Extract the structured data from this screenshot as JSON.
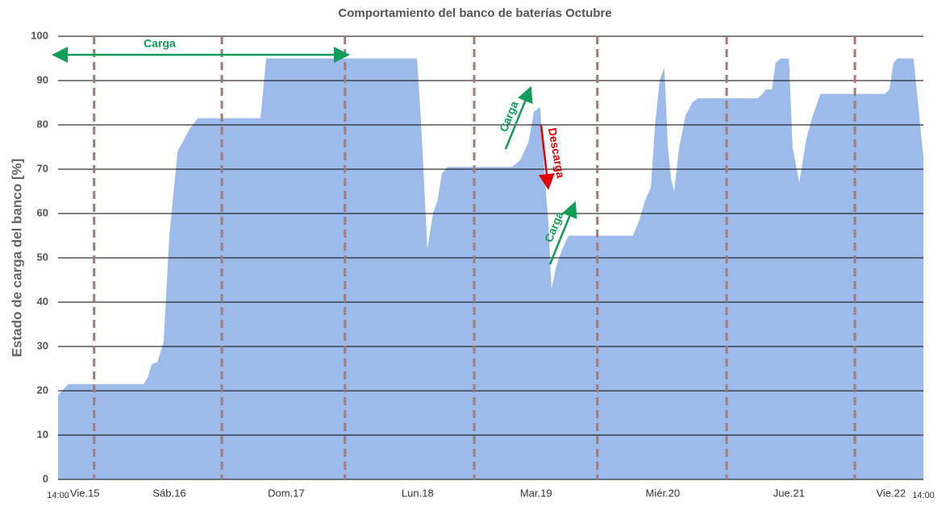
{
  "chart_data": {
    "type": "area",
    "title": "Comportamiento del banco de baterías Octubre",
    "y_label": "Estado de carga del banco [%]",
    "annotations": [
      "Carga",
      "Carga",
      "Descarga",
      "Carga"
    ],
    "color": "#9dbbea",
    "grid": true,
    "xlim": [
      0,
      168
    ],
    "xticks": [
      {
        "value": 0,
        "label": "14:00"
      },
      {
        "value": 5.2,
        "label": "Vie.15"
      },
      {
        "value": 21.6,
        "label": "Sáb.16"
      },
      {
        "value": 44.3,
        "label": "Dom.17"
      },
      {
        "value": 69.8,
        "label": "Lun.18"
      },
      {
        "value": 92.8,
        "label": "Mar.19"
      },
      {
        "value": 117.4,
        "label": "Miér.20"
      },
      {
        "value": 141.9,
        "label": "Jue.21"
      },
      {
        "value": 161.7,
        "label": "Vie.22"
      },
      {
        "value": 168,
        "label": "14:00"
      }
    ],
    "day_dividers": [
      7.0,
      31.8,
      55.7,
      80.8,
      104.7,
      129.8,
      154.7
    ],
    "ylim": [
      0,
      100
    ],
    "yticks": [
      0,
      10,
      20,
      30,
      40,
      50,
      60,
      70,
      80,
      90,
      100
    ],
    "x": [
      0,
      2.0,
      16.6,
      17.4,
      18.2,
      19.3,
      20.5,
      21.6,
      23.2,
      25.5,
      27.1,
      39.3,
      40.4,
      69.7,
      70.5,
      71.7,
      72.8,
      73.7,
      74.5,
      75.6,
      88.1,
      89.7,
      91.3,
      92.4,
      93.6,
      94.4,
      95.2,
      95.8,
      96.7,
      97.9,
      99.1,
      111.6,
      112.7,
      114.0,
      115.1,
      115.9,
      116.8,
      117.7,
      118.4,
      119.0,
      119.6,
      120.6,
      121.8,
      123.1,
      124.2,
      135.9,
      137.5,
      138.6,
      139.3,
      140.3,
      141.9,
      142.6,
      143.9,
      145.3,
      146.5,
      148.0,
      160.5,
      161.4,
      162.2,
      163.0,
      166.1,
      167.2,
      168.0
    ],
    "values": [
      19,
      21.5,
      21.5,
      23,
      26,
      26.5,
      31,
      55,
      74,
      79,
      81.5,
      81.5,
      95,
      95,
      80,
      52,
      60,
      63,
      69,
      70.5,
      70.5,
      72,
      76,
      83,
      84,
      70,
      58,
      43,
      48,
      52,
      55,
      55,
      58,
      63,
      66,
      80,
      90,
      93,
      75,
      68,
      65,
      75,
      82,
      85,
      86,
      86,
      88,
      88,
      94,
      95,
      95,
      75,
      67,
      77,
      82,
      87,
      87,
      88,
      94,
      95,
      95,
      82,
      73
    ]
  }
}
